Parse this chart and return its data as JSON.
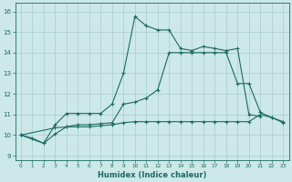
{
  "xlabel": "Humidex (Indice chaleur)",
  "bg_color": "#cce8e8",
  "grid_color": "#aacccc",
  "line_color": "#1a6a60",
  "xlim": [
    -0.5,
    23.5
  ],
  "ylim": [
    8.8,
    16.4
  ],
  "xticks": [
    0,
    1,
    2,
    3,
    4,
    5,
    6,
    7,
    8,
    9,
    10,
    11,
    12,
    13,
    14,
    15,
    16,
    17,
    18,
    19,
    20,
    21,
    22,
    23
  ],
  "yticks": [
    9,
    10,
    11,
    12,
    13,
    14,
    15,
    16
  ],
  "line1_x": [
    0,
    1,
    2,
    3,
    4,
    5,
    6,
    7,
    8,
    9,
    10,
    11,
    12,
    13,
    14,
    15,
    16,
    17,
    18,
    19,
    20,
    21
  ],
  "line1_y": [
    10.0,
    9.85,
    9.6,
    10.5,
    11.05,
    11.05,
    11.05,
    11.05,
    11.5,
    13.0,
    15.75,
    15.3,
    15.1,
    15.1,
    14.2,
    14.1,
    14.3,
    14.2,
    14.1,
    14.2,
    11.0,
    10.9
  ],
  "line2_x": [
    0,
    3,
    4,
    5,
    6,
    7,
    8,
    9,
    10,
    11,
    12,
    13,
    14,
    15,
    16,
    17,
    18,
    19,
    20,
    21,
    22,
    23
  ],
  "line2_y": [
    10.0,
    10.35,
    10.4,
    10.4,
    10.4,
    10.45,
    10.5,
    10.6,
    10.65,
    10.65,
    10.65,
    10.65,
    10.65,
    10.65,
    10.65,
    10.65,
    10.65,
    10.65,
    10.65,
    11.0,
    10.85,
    10.6
  ],
  "line3_x": [
    0,
    2,
    3,
    4,
    5,
    6,
    7,
    8,
    9,
    10,
    11,
    12,
    13,
    14,
    15,
    16,
    17,
    18,
    19,
    20,
    21,
    22,
    23
  ],
  "line3_y": [
    10.0,
    9.6,
    10.05,
    10.4,
    10.5,
    10.5,
    10.55,
    10.6,
    11.5,
    11.6,
    11.8,
    12.2,
    14.0,
    14.0,
    14.0,
    14.0,
    14.0,
    14.0,
    12.5,
    12.5,
    11.1,
    10.85,
    10.65
  ]
}
